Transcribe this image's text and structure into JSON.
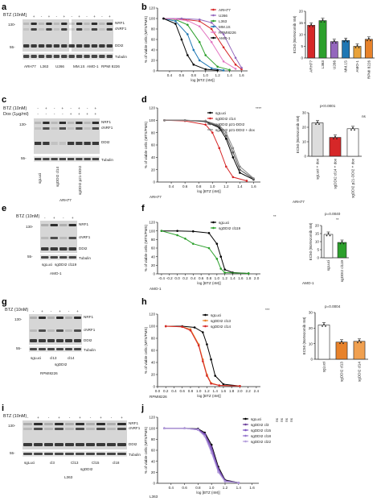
{
  "panels": {
    "a": {
      "label": "a",
      "treatment": "BTZ (10nM)",
      "lane_signs": [
        "-",
        "+",
        "-",
        "+",
        "-",
        "+",
        "-",
        "+",
        "-",
        "+",
        "-",
        "+"
      ],
      "mw": [
        "130-",
        "55-"
      ],
      "bands": [
        "NRF1",
        "cNRF1",
        "DDI2",
        "Tubulin"
      ],
      "lanes": [
        "ARH77",
        "L363",
        "U266",
        "MM.1S",
        "AMO-1",
        "RPMI 8226"
      ]
    },
    "b": {
      "label": "b",
      "bar_ylabel": "EC50 (Bortezomib nM)"
    },
    "c": {
      "label": "c",
      "rows": [
        "BTZ (10nM)",
        "Dox (1µg/ml)"
      ],
      "btz_signs": [
        "-",
        "+",
        "-",
        "+",
        "-",
        "+",
        "-",
        "+"
      ],
      "dox_signs": [
        "-",
        "-",
        "-",
        "-",
        "+",
        "+",
        "+",
        "+"
      ],
      "mw": [
        "130-",
        "55-"
      ],
      "bands": [
        "NRF1",
        "cNRF1",
        "DDI2",
        "Tubulin"
      ],
      "lanes": [
        "sgLuci",
        "sgDDI2 cl14",
        "sgDDI2 p21-DDI2"
      ],
      "cell": "ARH77"
    },
    "d": {
      "label": "d",
      "cell": "ARH77",
      "bar_ylabel": "EC50 (Bortezomib nM)",
      "pvalue": "p<0.0001",
      "ns": "ns",
      "stars": "****",
      "bar_categories": [
        "sgLuci + dox",
        "sgDDI2 cl14 + dox",
        "sgDDI2 p21-DDI2 + dox"
      ]
    },
    "e": {
      "label": "e",
      "treatment": "BTZ (10nM)",
      "lane_signs": [
        "-",
        "+",
        "-",
        "+"
      ],
      "mw": [
        "130-",
        "55-"
      ],
      "bands": [
        "NRF1",
        "cNRF1",
        "DDI2",
        "Tubulin"
      ],
      "lanes": [
        "sgLuci",
        "sgDDI2 cl119"
      ],
      "cell": "AMO-1"
    },
    "f": {
      "label": "f",
      "cell": "AMO-1",
      "bar_ylabel": "EC50 (Bortezomib nM)",
      "pvalue": "p=0.0040",
      "stars": "**",
      "bar_categories": [
        "sgLuci",
        "sgDDI2 cl119"
      ]
    },
    "g": {
      "label": "g",
      "treatment": "BTZ (10nM)",
      "lane_signs": [
        "-",
        "+",
        "-",
        "+",
        "-",
        "+"
      ],
      "mw": [
        "130-",
        "55-"
      ],
      "bands": [
        "NRF1",
        "cNRF1",
        "DDI2",
        "Tubulin"
      ],
      "lanes": [
        "sgLuci",
        "cl13",
        "cl14"
      ],
      "group": "sgDDI2",
      "cell": "RPMI8226"
    },
    "h": {
      "label": "h",
      "cell": "RPMI8226",
      "bar_ylabel": "EC50 (Bortezomib nM)",
      "pvalue": "p=0.0004",
      "stars": "***",
      "bar_categories": [
        "sgLuci",
        "sgDDI2 cl13",
        "sgDDI2 cl14"
      ]
    },
    "i": {
      "label": "i",
      "treatment": "BTZ (10nM)",
      "lane_signs": [
        "-",
        "+",
        "-",
        "+",
        "-",
        "+",
        "-",
        "+",
        "-",
        "+"
      ],
      "mw": [
        "130-",
        "55-"
      ],
      "bands": [
        "NRF1",
        "cNRF1",
        "DDI2",
        "Tubulin"
      ],
      "lanes": [
        "sgLuci",
        "cl3",
        "Cl13",
        "Cl15",
        "cl18"
      ],
      "group": "sgDDI2",
      "cell": "L363"
    },
    "j": {
      "label": "j",
      "cell": "L363",
      "sig": [
        "ns",
        "ns",
        "ns",
        "ns"
      ]
    }
  },
  "chart_data": [
    {
      "id": "b-curve",
      "type": "line",
      "xlabel": "log [BTZ (nM)]",
      "ylabel": "% of viable cells (MTS/PMS)",
      "xlim": [
        0.2,
        1.7
      ],
      "ylim": [
        0,
        120
      ],
      "x_ticks": [
        "0.4",
        "0.6",
        "0.8",
        "1.0",
        "1.2",
        "1.4",
        "1.6"
      ],
      "y_ticks": [
        "0",
        "20",
        "40",
        "60",
        "80",
        "100",
        "120"
      ],
      "series": [
        {
          "name": "ARH77",
          "color": "#d62728",
          "x": [
            0.3,
            0.6,
            0.9,
            1.1,
            1.3,
            1.5,
            1.6
          ],
          "y": [
            100,
            99,
            95,
            80,
            45,
            12,
            3
          ]
        },
        {
          "name": "U266",
          "color": "#9467bd",
          "x": [
            0.3,
            0.6,
            0.9,
            1.1,
            1.3,
            1.5,
            1.6
          ],
          "y": [
            100,
            100,
            98,
            92,
            70,
            25,
            6
          ]
        },
        {
          "name": "L363",
          "color": "#2ca02c",
          "x": [
            0.3,
            0.5,
            0.7,
            0.9,
            1.0,
            1.2,
            1.4
          ],
          "y": [
            100,
            98,
            88,
            55,
            30,
            8,
            2
          ]
        },
        {
          "name": "MM.1S",
          "color": "#1f77b4",
          "x": [
            0.3,
            0.5,
            0.7,
            0.8,
            0.9,
            1.1,
            1.3
          ],
          "y": [
            100,
            95,
            70,
            40,
            20,
            5,
            1
          ]
        },
        {
          "name": "RPMI8226",
          "color": "#e377c2",
          "x": [
            0.3,
            0.5,
            0.7,
            0.9,
            1.1,
            1.3,
            1.5
          ],
          "y": [
            100,
            99,
            96,
            85,
            55,
            18,
            4
          ]
        },
        {
          "name": "AMO-1",
          "color": "#000000",
          "x": [
            0.3,
            0.5,
            0.6,
            0.7,
            0.8,
            1.0,
            1.2
          ],
          "y": [
            100,
            90,
            60,
            30,
            12,
            3,
            1
          ]
        }
      ]
    },
    {
      "id": "b-bar",
      "type": "bar",
      "ylabel": "EC50 (Bortezomib nM)",
      "ylim": [
        0,
        20
      ],
      "y_ticks": [
        "0",
        "5",
        "10",
        "15",
        "20"
      ],
      "categories": [
        "ARH77",
        "L363",
        "U266",
        "MM.1S",
        "AMO-1",
        "RPMI 8226"
      ],
      "values": [
        14,
        16,
        7,
        7.5,
        5,
        8
      ],
      "colors": [
        "#d62728",
        "#2ca02c",
        "#9467bd",
        "#1f77b4",
        "#e8a23a",
        "#e8822a"
      ]
    },
    {
      "id": "d-curve",
      "type": "line",
      "xlabel": "log [BTZ (nM)]",
      "ylabel": "% of viable cells (MTS/PMS)",
      "xlim": [
        0.2,
        1.7
      ],
      "ylim": [
        0,
        120
      ],
      "x_ticks": [
        "0.4",
        "0.6",
        "0.8",
        "1.0",
        "1.2",
        "1.4",
        "1.6"
      ],
      "y_ticks": [
        "0",
        "20",
        "40",
        "60",
        "80",
        "100",
        "120"
      ],
      "series": [
        {
          "name": "sgLuci",
          "color": "#000000",
          "x": [
            0.3,
            0.6,
            0.9,
            1.1,
            1.2,
            1.3,
            1.4,
            1.6
          ],
          "y": [
            100,
            100,
            98,
            88,
            70,
            40,
            15,
            4
          ]
        },
        {
          "name": "sgDDI2 cl14",
          "color": "#d62728",
          "x": [
            0.3,
            0.6,
            0.9,
            1.0,
            1.1,
            1.2,
            1.3,
            1.5
          ],
          "y": [
            100,
            99,
            93,
            80,
            55,
            25,
            8,
            2
          ]
        },
        {
          "name": "sgDDI2 p21-DDI2",
          "color": "#555555",
          "x": [
            0.3,
            0.6,
            0.9,
            1.1,
            1.2,
            1.3,
            1.4,
            1.6
          ],
          "y": [
            100,
            100,
            99,
            90,
            75,
            48,
            20,
            5
          ]
        },
        {
          "name": "sgDDI2 p21-DDI2 + dox",
          "color": "#888888",
          "x": [
            0.3,
            0.6,
            0.9,
            1.1,
            1.2,
            1.3,
            1.4,
            1.6
          ],
          "y": [
            100,
            100,
            99,
            92,
            80,
            55,
            25,
            6
          ]
        }
      ]
    },
    {
      "id": "d-bar",
      "type": "bar",
      "ylabel": "EC50 (Bortezomib nM)",
      "ylim": [
        0,
        30
      ],
      "y_ticks": [
        "0",
        "10",
        "20",
        "30"
      ],
      "categories": [
        "sgLuci + dox",
        "sgDDI2 cl14 + dox",
        "sgDDI2 p21-DDI2 + dox"
      ],
      "values": [
        23,
        13,
        19
      ],
      "colors": [
        "#dddddd",
        "#d62728",
        "#ffffff"
      ]
    },
    {
      "id": "f-curve",
      "type": "line",
      "xlabel": "log [BTZ (nM)]",
      "ylabel": "% of viable cells (MTS/PMS)",
      "xlim": [
        -0.5,
        2.1
      ],
      "ylim": [
        0,
        120
      ],
      "x_ticks": [
        "-0.4",
        "-0.2",
        "0.0",
        "0.2",
        "0.4",
        "0.6",
        "0.8",
        "1.0",
        "1.2",
        "1.4",
        "1.6",
        "1.8",
        "2.0"
      ],
      "y_ticks": [
        "0",
        "20",
        "40",
        "60",
        "80",
        "100",
        "120"
      ],
      "series": [
        {
          "name": "sgLuci",
          "color": "#000000",
          "x": [
            -0.4,
            0.0,
            0.4,
            0.8,
            1.0,
            1.1,
            1.2,
            1.4,
            1.8
          ],
          "y": [
            100,
            100,
            99,
            95,
            70,
            40,
            10,
            3,
            1
          ]
        },
        {
          "name": "sgDDI2 cl119",
          "color": "#2ca02c",
          "x": [
            -0.4,
            0.0,
            0.2,
            0.4,
            0.8,
            1.0,
            1.1,
            1.2,
            1.8
          ],
          "y": [
            100,
            90,
            82,
            70,
            60,
            35,
            12,
            3,
            1
          ]
        }
      ]
    },
    {
      "id": "f-bar",
      "type": "bar",
      "ylabel": "EC50 (Bortezomib nM)",
      "ylim": [
        0,
        20
      ],
      "y_ticks": [
        "0",
        "5",
        "10",
        "15",
        "20"
      ],
      "categories": [
        "sgLuci",
        "sgDDI2 cl119"
      ],
      "values": [
        14.5,
        9.5
      ],
      "colors": [
        "#ffffff",
        "#2ca02c"
      ]
    },
    {
      "id": "h-curve",
      "type": "line",
      "xlabel": "log [BTZ (nM)]",
      "ylabel": "% of viable cells (MTS/PMS)",
      "xlim": [
        0.0,
        2.5
      ],
      "ylim": [
        0,
        120
      ],
      "x_ticks": [
        "0.0",
        "0.2",
        "0.4",
        "0.6",
        "0.8",
        "1.0",
        "1.2",
        "1.4",
        "1.6",
        "1.8",
        "2.0",
        "2.2",
        "2.4"
      ],
      "y_ticks": [
        "0",
        "20",
        "40",
        "60",
        "80",
        "100",
        "120"
      ],
      "series": [
        {
          "name": "sgLuci",
          "color": "#000000",
          "x": [
            0.2,
            0.6,
            0.9,
            1.1,
            1.2,
            1.3,
            1.4,
            1.6,
            2.0
          ],
          "y": [
            100,
            100,
            98,
            90,
            70,
            45,
            18,
            4,
            1
          ]
        },
        {
          "name": "sgDDI2 cl13",
          "color": "#e8822a",
          "x": [
            0.2,
            0.6,
            0.8,
            1.0,
            1.1,
            1.2,
            1.3,
            1.5,
            2.0
          ],
          "y": [
            100,
            99,
            95,
            70,
            45,
            20,
            6,
            2,
            1
          ]
        },
        {
          "name": "sgDDI2 cl14",
          "color": "#d62728",
          "x": [
            0.2,
            0.6,
            0.8,
            1.0,
            1.1,
            1.2,
            1.3,
            1.5,
            2.0
          ],
          "y": [
            100,
            99,
            93,
            68,
            42,
            18,
            5,
            2,
            1
          ]
        }
      ]
    },
    {
      "id": "h-bar",
      "type": "bar",
      "ylabel": "EC50 (Bortezomib nM)",
      "ylim": [
        0,
        30
      ],
      "y_ticks": [
        "0",
        "10",
        "20",
        "30"
      ],
      "categories": [
        "sgLuci",
        "sgDDI2 cl13",
        "sgDDI2 cl14"
      ],
      "values": [
        22,
        11,
        11.5
      ],
      "colors": [
        "#ffffff",
        "#e8822a",
        "#f0a050"
      ]
    },
    {
      "id": "j-curve",
      "type": "line",
      "xlabel": "log [BTZ (nM)]",
      "ylabel": "% of viable cells (MTS/PMS)",
      "xlim": [
        0.2,
        1.7
      ],
      "ylim": [
        0,
        120
      ],
      "x_ticks": [
        "0.4",
        "0.6",
        "0.8",
        "1.0",
        "1.2",
        "1.4",
        "1.6"
      ],
      "y_ticks": [
        "0",
        "20",
        "40",
        "60",
        "80",
        "100",
        "120"
      ],
      "series": [
        {
          "name": "sgLuci",
          "color": "#000000",
          "x": [
            0.3,
            0.6,
            0.8,
            0.9,
            1.0,
            1.1,
            1.2,
            1.4
          ],
          "y": [
            100,
            100,
            99,
            92,
            70,
            30,
            6,
            1
          ]
        },
        {
          "name": "sgDDI2 cl3",
          "color": "#6a3d9a",
          "x": [
            0.3,
            0.6,
            0.8,
            0.9,
            1.0,
            1.1,
            1.2,
            1.4
          ],
          "y": [
            100,
            100,
            98,
            90,
            66,
            27,
            5,
            1
          ]
        },
        {
          "name": "sgDDI2 cl15",
          "color": "#7e57c2",
          "x": [
            0.3,
            0.6,
            0.8,
            0.9,
            1.0,
            1.1,
            1.2,
            1.4
          ],
          "y": [
            100,
            100,
            98,
            88,
            62,
            24,
            4,
            1
          ]
        },
        {
          "name": "sgDDI2 cl18",
          "color": "#9575cd",
          "x": [
            0.3,
            0.6,
            0.8,
            0.9,
            1.0,
            1.1,
            1.2,
            1.4
          ],
          "y": [
            100,
            100,
            97,
            86,
            58,
            22,
            4,
            1
          ]
        },
        {
          "name": "sgDDI2 cl22",
          "color": "#b39ddb",
          "x": [
            0.3,
            0.6,
            0.8,
            0.9,
            1.0,
            1.1,
            1.2,
            1.4
          ],
          "y": [
            100,
            100,
            97,
            85,
            55,
            20,
            3,
            1
          ]
        }
      ]
    }
  ]
}
